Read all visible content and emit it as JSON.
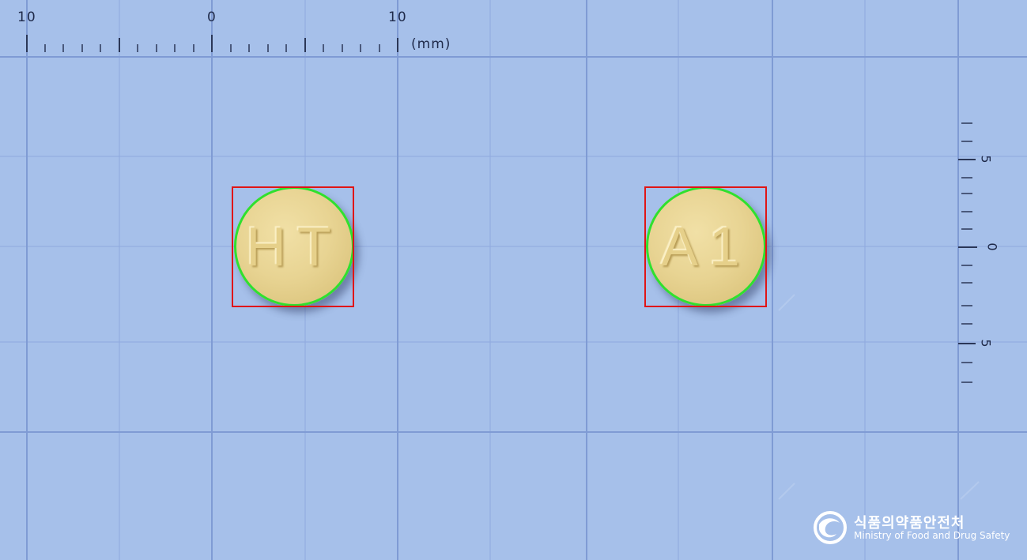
{
  "ruler": {
    "top_labels": [
      "10",
      "0",
      "10"
    ],
    "unit": "(mm)",
    "right_labels": [
      "5",
      "0",
      "5"
    ]
  },
  "pills": [
    {
      "imprint": "HT",
      "color": "#e8d493"
    },
    {
      "imprint": "A1",
      "color": "#e8d493"
    }
  ],
  "annotation_colors": {
    "box": "#e01515",
    "outline": "#2fe02f"
  },
  "watermark": {
    "korean": "식품의약품안전처",
    "english": "Ministry of Food and Drug Safety",
    "icon": "mfds-logo-icon"
  }
}
